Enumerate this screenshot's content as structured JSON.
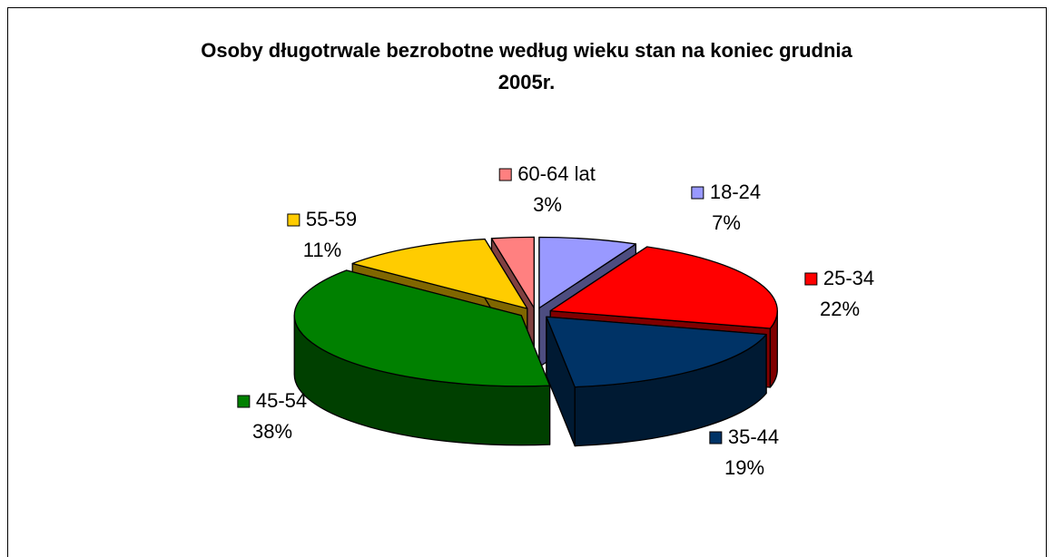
{
  "chart_data": {
    "type": "pie3d",
    "title": "Osoby długotrwale bezrobotne według wieku stan na koniec grudnia 2005r.",
    "categories": [
      "18-24",
      "25-34",
      "35-44",
      "45-54",
      "55-59",
      "60-64 lat"
    ],
    "values": [
      7,
      22,
      19,
      38,
      11,
      3
    ],
    "value_labels": [
      "7%",
      "22%",
      "19%",
      "38%",
      "11%",
      "3%"
    ],
    "colors": [
      "#9999ff",
      "#ff0000",
      "#003366",
      "#008000",
      "#ffcc00",
      "#ff8080"
    ]
  }
}
